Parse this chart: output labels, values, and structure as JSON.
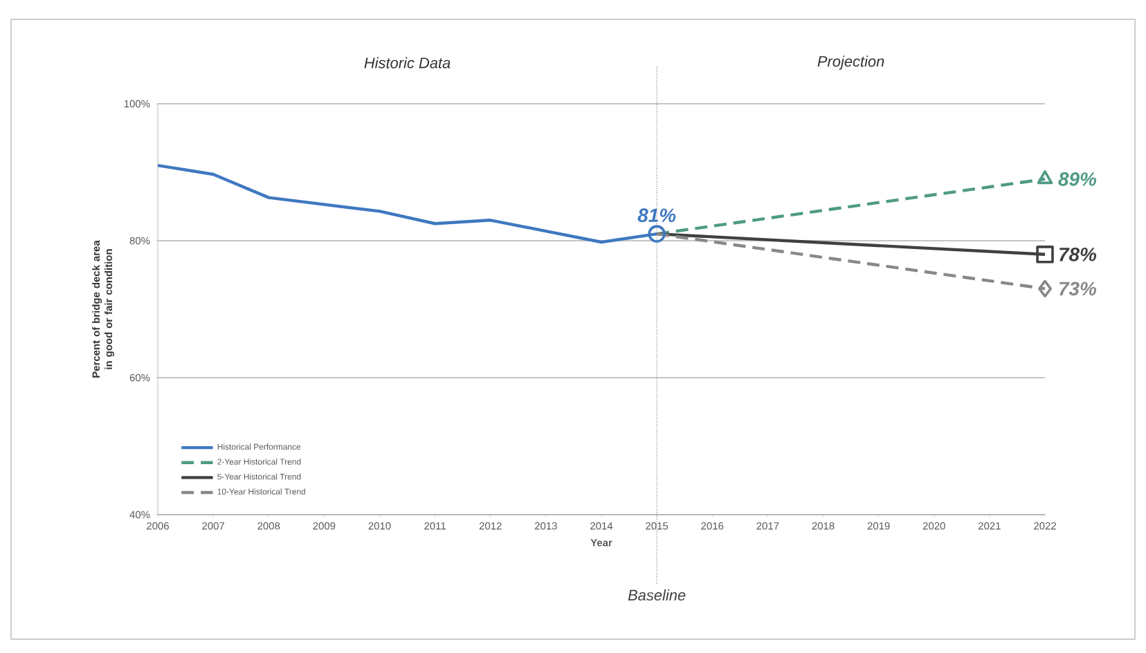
{
  "chart_data": {
    "type": "line",
    "xlabel": "Year",
    "ylabel": "Percent of bridge deck area in good or fair condition",
    "xlim": [
      2006,
      2022
    ],
    "xticks": [
      2006,
      2007,
      2008,
      2009,
      2010,
      2011,
      2012,
      2013,
      2014,
      2015,
      2016,
      2017,
      2018,
      2019,
      2020,
      2021,
      2022
    ],
    "ylim": [
      40,
      100
    ],
    "yticks": [
      {
        "value": 40,
        "label": "40%"
      },
      {
        "value": 60,
        "label": "60%"
      },
      {
        "value": 80,
        "label": "80%"
      },
      {
        "value": 100,
        "label": "100%"
      }
    ],
    "grid": "y",
    "legend": "bottom left",
    "series": [
      {
        "name": "Historical Performance",
        "color": "#3f78c1",
        "line_style": "solid",
        "x": [
          2006,
          2007,
          2008,
          2009,
          2010,
          2011,
          2012,
          2013,
          2014,
          2015
        ],
        "values": [
          91,
          89.7,
          86.3,
          85.3,
          84.3,
          82.5,
          83,
          81.4,
          79.8,
          81
        ]
      },
      {
        "type": "scatter",
        "color": "#3f78c1",
        "marker": "circle",
        "x": [
          2015
        ],
        "values": [
          81
        ],
        "value_labels": [
          "81%"
        ]
      },
      {
        "name": "2-Year Historical Trend",
        "color": "#4e9a84",
        "marker": "triangle",
        "line_style": "dashed",
        "x": [
          2015,
          2022
        ],
        "values": [
          81,
          89
        ],
        "value_labels": [
          null,
          "89%"
        ]
      },
      {
        "name": "5-Year Historical Trend",
        "color": "#404040",
        "marker": "square",
        "line_style": "solid",
        "x": [
          2015,
          2022
        ],
        "values": [
          81,
          78
        ],
        "value_labels": [
          null,
          "78%"
        ]
      },
      {
        "name": "10-Year Historical Trend",
        "color": "#888888",
        "marker": "diamond",
        "line_style": "dashed",
        "x": [
          2015,
          2022
        ],
        "values": [
          81,
          73
        ],
        "value_labels": [
          null,
          "73%"
        ]
      }
    ],
    "ref_lines": [
      {
        "axis": "x",
        "value": 2015,
        "label": "Baseline",
        "line_style": "dotted",
        "color": "#808080"
      }
    ],
    "annotations": [
      "Historic Data",
      "Projection"
    ]
  }
}
